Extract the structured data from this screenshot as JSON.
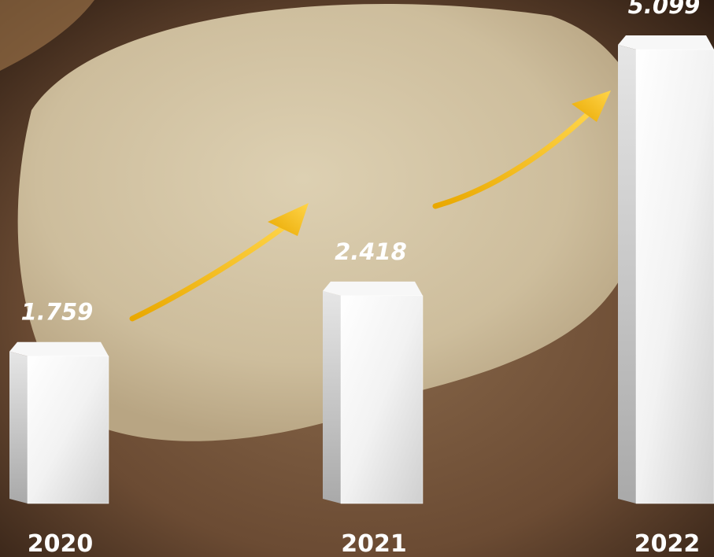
{
  "chart_data": {
    "type": "bar",
    "categories": [
      "2020",
      "2021",
      "2022"
    ],
    "values": [
      1.759,
      2.418,
      5.099
    ],
    "color": "#ffffff"
  }
}
